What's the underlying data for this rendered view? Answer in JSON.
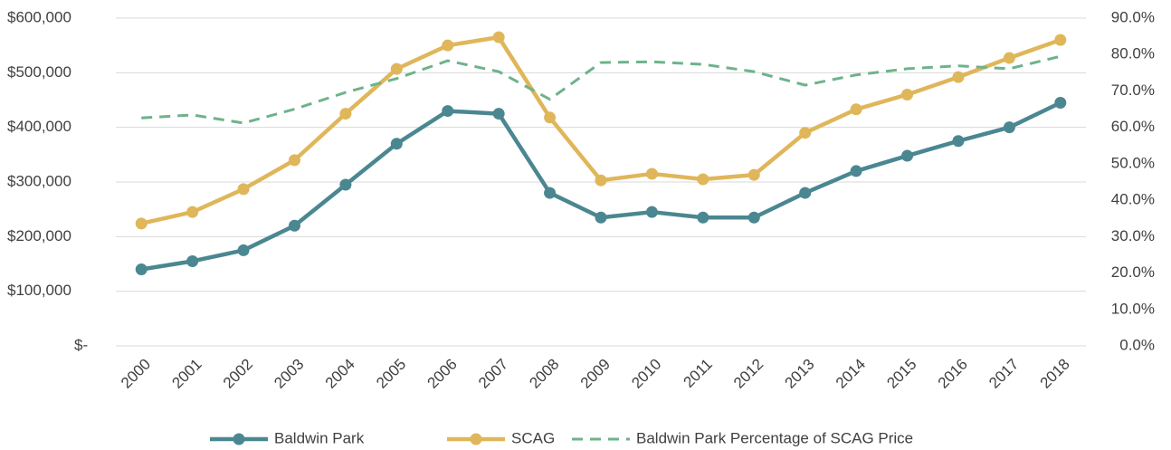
{
  "chart_data": {
    "type": "line",
    "categories": [
      "2000",
      "2001",
      "2002",
      "2003",
      "2004",
      "2005",
      "2006",
      "2007",
      "2008",
      "2009",
      "2010",
      "2011",
      "2012",
      "2013",
      "2014",
      "2015",
      "2016",
      "2017",
      "2018"
    ],
    "series": [
      {
        "name": "Baldwin Park",
        "color": "#4a8791",
        "markers": true,
        "line_style": "solid",
        "values": [
          140000,
          155000,
          175000,
          220000,
          295000,
          370000,
          430000,
          425000,
          280000,
          235000,
          245000,
          235000,
          235000,
          280000,
          320000,
          348000,
          375000,
          400000,
          445000
        ]
      },
      {
        "name": "SCAG",
        "color": "#e0b65a",
        "markers": true,
        "line_style": "solid",
        "values": [
          224000,
          245000,
          287000,
          340000,
          425000,
          507000,
          550000,
          565000,
          418000,
          303000,
          315000,
          305000,
          313000,
          390000,
          433000,
          460000,
          492000,
          527000,
          560000
        ]
      },
      {
        "name": "Baldwin Park Percentage of SCAG Price",
        "color": "#6db38a",
        "markers": false,
        "line_style": "dashed",
        "axis": "y2",
        "values": [
          62.6,
          63.4,
          61.2,
          65.0,
          69.6,
          73.4,
          78.3,
          75.3,
          67.7,
          77.8,
          78.0,
          77.3,
          75.3,
          71.6,
          74.4,
          76.1,
          76.9,
          76.1,
          79.5
        ]
      }
    ],
    "ylim": [
      0,
      600000
    ],
    "yticks": [
      {
        "value": 0,
        "label": "$-"
      },
      {
        "value": 100000,
        "label": "$100,000"
      },
      {
        "value": 200000,
        "label": "$200,000"
      },
      {
        "value": 300000,
        "label": "$300,000"
      },
      {
        "value": 400000,
        "label": "$400,000"
      },
      {
        "value": 500000,
        "label": "$500,000"
      },
      {
        "value": 600000,
        "label": "$600,000"
      }
    ],
    "y2lim": [
      0,
      90
    ],
    "y2ticks": [
      {
        "value": 0,
        "label": "0.0%"
      },
      {
        "value": 10,
        "label": "10.0%"
      },
      {
        "value": 20,
        "label": "20.0%"
      },
      {
        "value": 30,
        "label": "30.0%"
      },
      {
        "value": 40,
        "label": "40.0%"
      },
      {
        "value": 50,
        "label": "50.0%"
      },
      {
        "value": 60,
        "label": "60.0%"
      },
      {
        "value": 70,
        "label": "70.0%"
      },
      {
        "value": 80,
        "label": "80.0%"
      },
      {
        "value": 90,
        "label": "90.0%"
      }
    ],
    "grid": true,
    "legend": "bottom"
  }
}
